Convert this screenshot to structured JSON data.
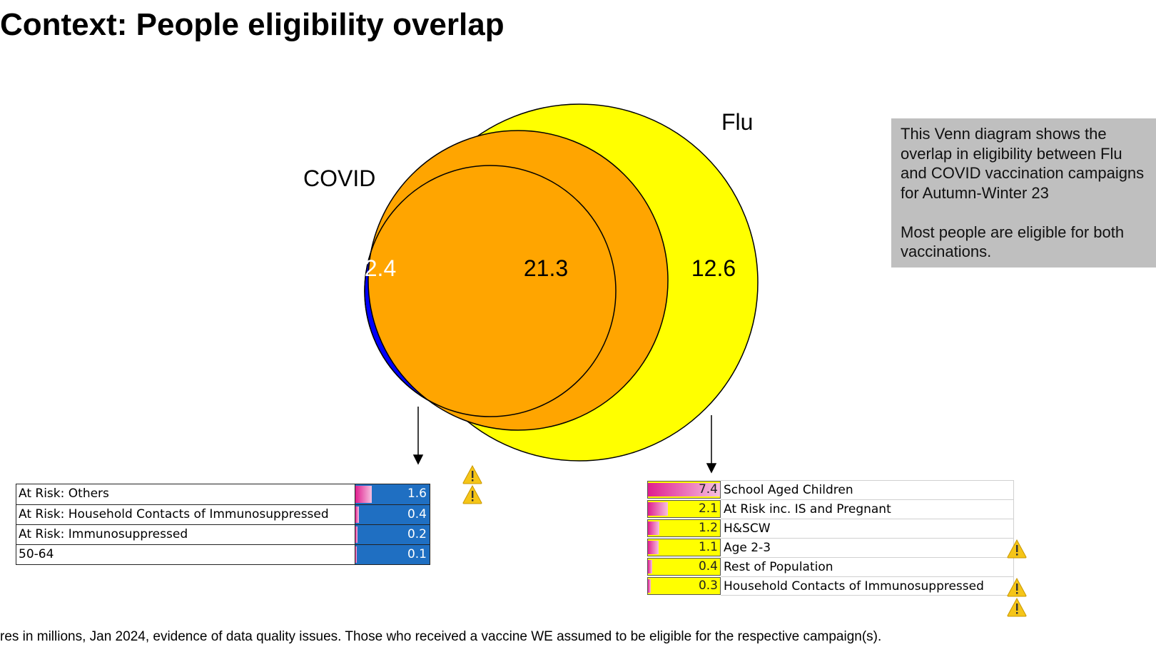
{
  "page": {
    "title": "Context: People eligibility overlap",
    "footnote": "res in millions, Jan 2024, evidence of data quality issues.   Those who received a vaccine WE assumed to be eligible for the respective campaign(s)."
  },
  "venn": {
    "sets": [
      {
        "name": "COVID",
        "color": "#0000ff",
        "only_value": "2.4"
      },
      {
        "name": "Flu",
        "color": "#ffff00",
        "only_value": "12.6"
      }
    ],
    "overlap_value": "21.3",
    "overlap_color": "#ffa500"
  },
  "note": {
    "paragraph1": "This Venn diagram shows the overlap in eligibility between Flu and COVID vaccination campaigns for Autumn-Winter 23",
    "paragraph2": "Most people are eligible for both vaccinations."
  },
  "covid_breakdown": {
    "bar_color": "#1f6fc2",
    "rows": [
      {
        "label": "At Risk: Others",
        "value": "1.6",
        "fraction": 0.22
      },
      {
        "label": "At Risk: Household Contacts of Immunosuppressed",
        "value": "0.4",
        "fraction": 0.05
      },
      {
        "label": "At Risk: Immunosuppressed",
        "value": "0.2",
        "fraction": 0.025
      },
      {
        "label": "50-64",
        "value": "0.1",
        "fraction": 0.015
      }
    ]
  },
  "flu_breakdown": {
    "bar_color": "#ffff00",
    "rows": [
      {
        "label": "School Aged Children",
        "value": "7.4",
        "fraction": 1.0
      },
      {
        "label": "At Risk inc. IS and Pregnant",
        "value": "2.1",
        "fraction": 0.28
      },
      {
        "label": "H&SCW",
        "value": "1.2",
        "fraction": 0.16
      },
      {
        "label": "Age 2-3",
        "value": "1.1",
        "fraction": 0.15
      },
      {
        "label": "Rest of Population",
        "value": "0.4",
        "fraction": 0.055
      },
      {
        "label": "Household Contacts of Immunosuppressed",
        "value": "0.3",
        "fraction": 0.04
      }
    ]
  },
  "icons": {
    "warning": "warning-icon"
  }
}
